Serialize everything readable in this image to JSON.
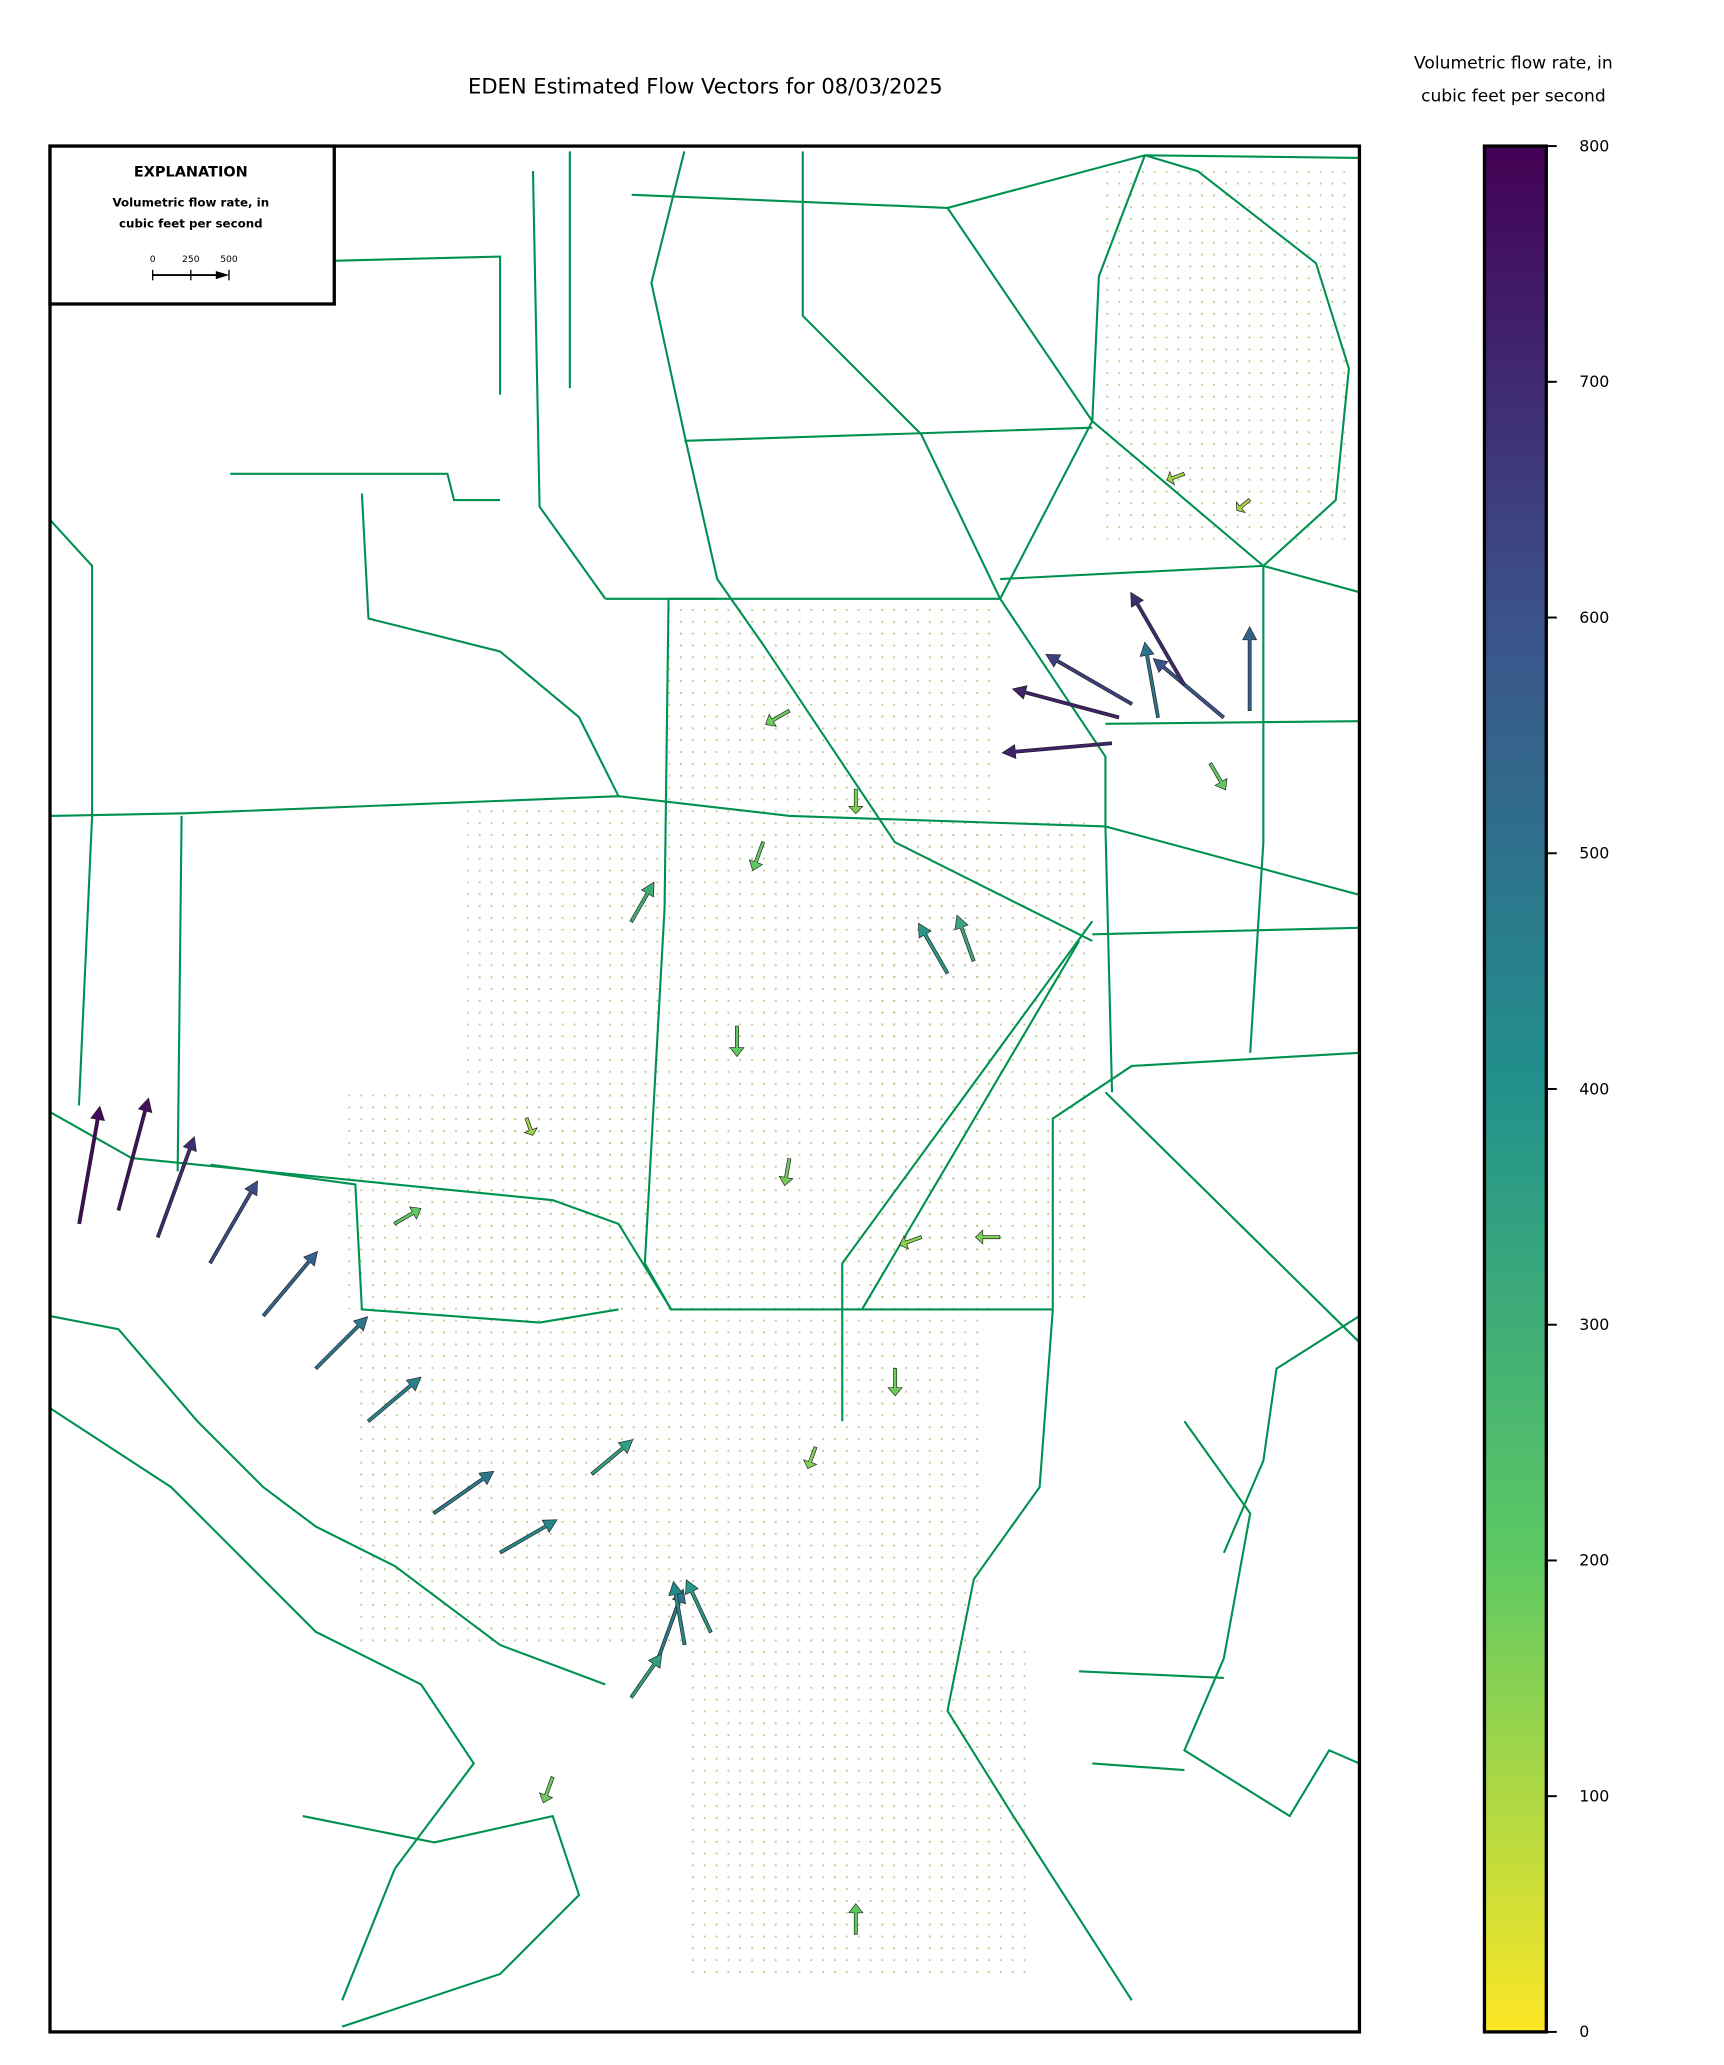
{
  "chart_data": {
    "type": "quiver",
    "title": "EDEN Estimated Flow Vectors for 08/03/2025",
    "colorbar_label": [
      "Volumetric flow rate, in",
      "cubic feet per second"
    ],
    "colormap": "viridis_r",
    "clim": [
      0,
      800
    ],
    "cticks": [
      0,
      100,
      200,
      300,
      400,
      500,
      600,
      700,
      800
    ],
    "explanation": {
      "title": "EXPLANATION",
      "label": [
        "Volumetric flow rate, in",
        "cubic feet per second"
      ],
      "scale_ticks": [
        0,
        250,
        500
      ]
    },
    "vectors": {
      "lon": [
        -80.389,
        -80.376,
        -80.285,
        -80.259,
        -80.324,
        -80.396,
        -80.35,
        -81.421,
        -81.382,
        -81.343,
        -81.291,
        -81.238,
        -81.186,
        -81.134,
        -81.069,
        -81.003,
        -80.912,
        -80.846,
        -80.82,
        -80.794,
        -80.873,
        -80.559,
        -80.533,
        -80.873,
        -80.716,
        -80.742,
        -80.65,
        -80.768,
        -80.716,
        -80.585,
        -80.507,
        -80.324,
        -80.259,
        -80.298,
        -80.611,
        -80.69,
        -80.65,
        -80.951,
        -81.108,
        -80.977
      ],
      "lat": [
        26.271,
        26.283,
        26.271,
        26.277,
        26.3,
        26.248,
        26.271,
        25.82,
        25.832,
        25.808,
        25.785,
        25.738,
        25.691,
        25.644,
        25.562,
        25.527,
        25.597,
        25.433,
        25.445,
        25.456,
        25.398,
        26.043,
        26.054,
        26.089,
        26.277,
        26.16,
        26.207,
        25.996,
        25.878,
        25.808,
        25.808,
        26.488,
        26.465,
        26.23,
        25.691,
        25.621,
        25.187,
        25.327,
        25.82,
        25.914
      ],
      "flow": [
        720,
        650,
        600,
        550,
        700,
        720,
        500,
        780,
        760,
        700,
        620,
        550,
        480,
        450,
        480,
        430,
        350,
        480,
        420,
        380,
        350,
        380,
        320,
        300,
        180,
        200,
        160,
        200,
        180,
        150,
        160,
        120,
        110,
        200,
        180,
        150,
        200,
        180,
        200,
        120
      ],
      "direction": [
        165,
        150,
        140,
        90,
        120,
        185,
        100,
        80,
        75,
        70,
        60,
        50,
        45,
        40,
        35,
        30,
        40,
        70,
        100,
        115,
        55,
        120,
        110,
        60,
        210,
        250,
        270,
        270,
        260,
        200,
        180,
        200,
        220,
        300,
        270,
        250,
        90,
        250,
        30,
        290
      ]
    }
  }
}
